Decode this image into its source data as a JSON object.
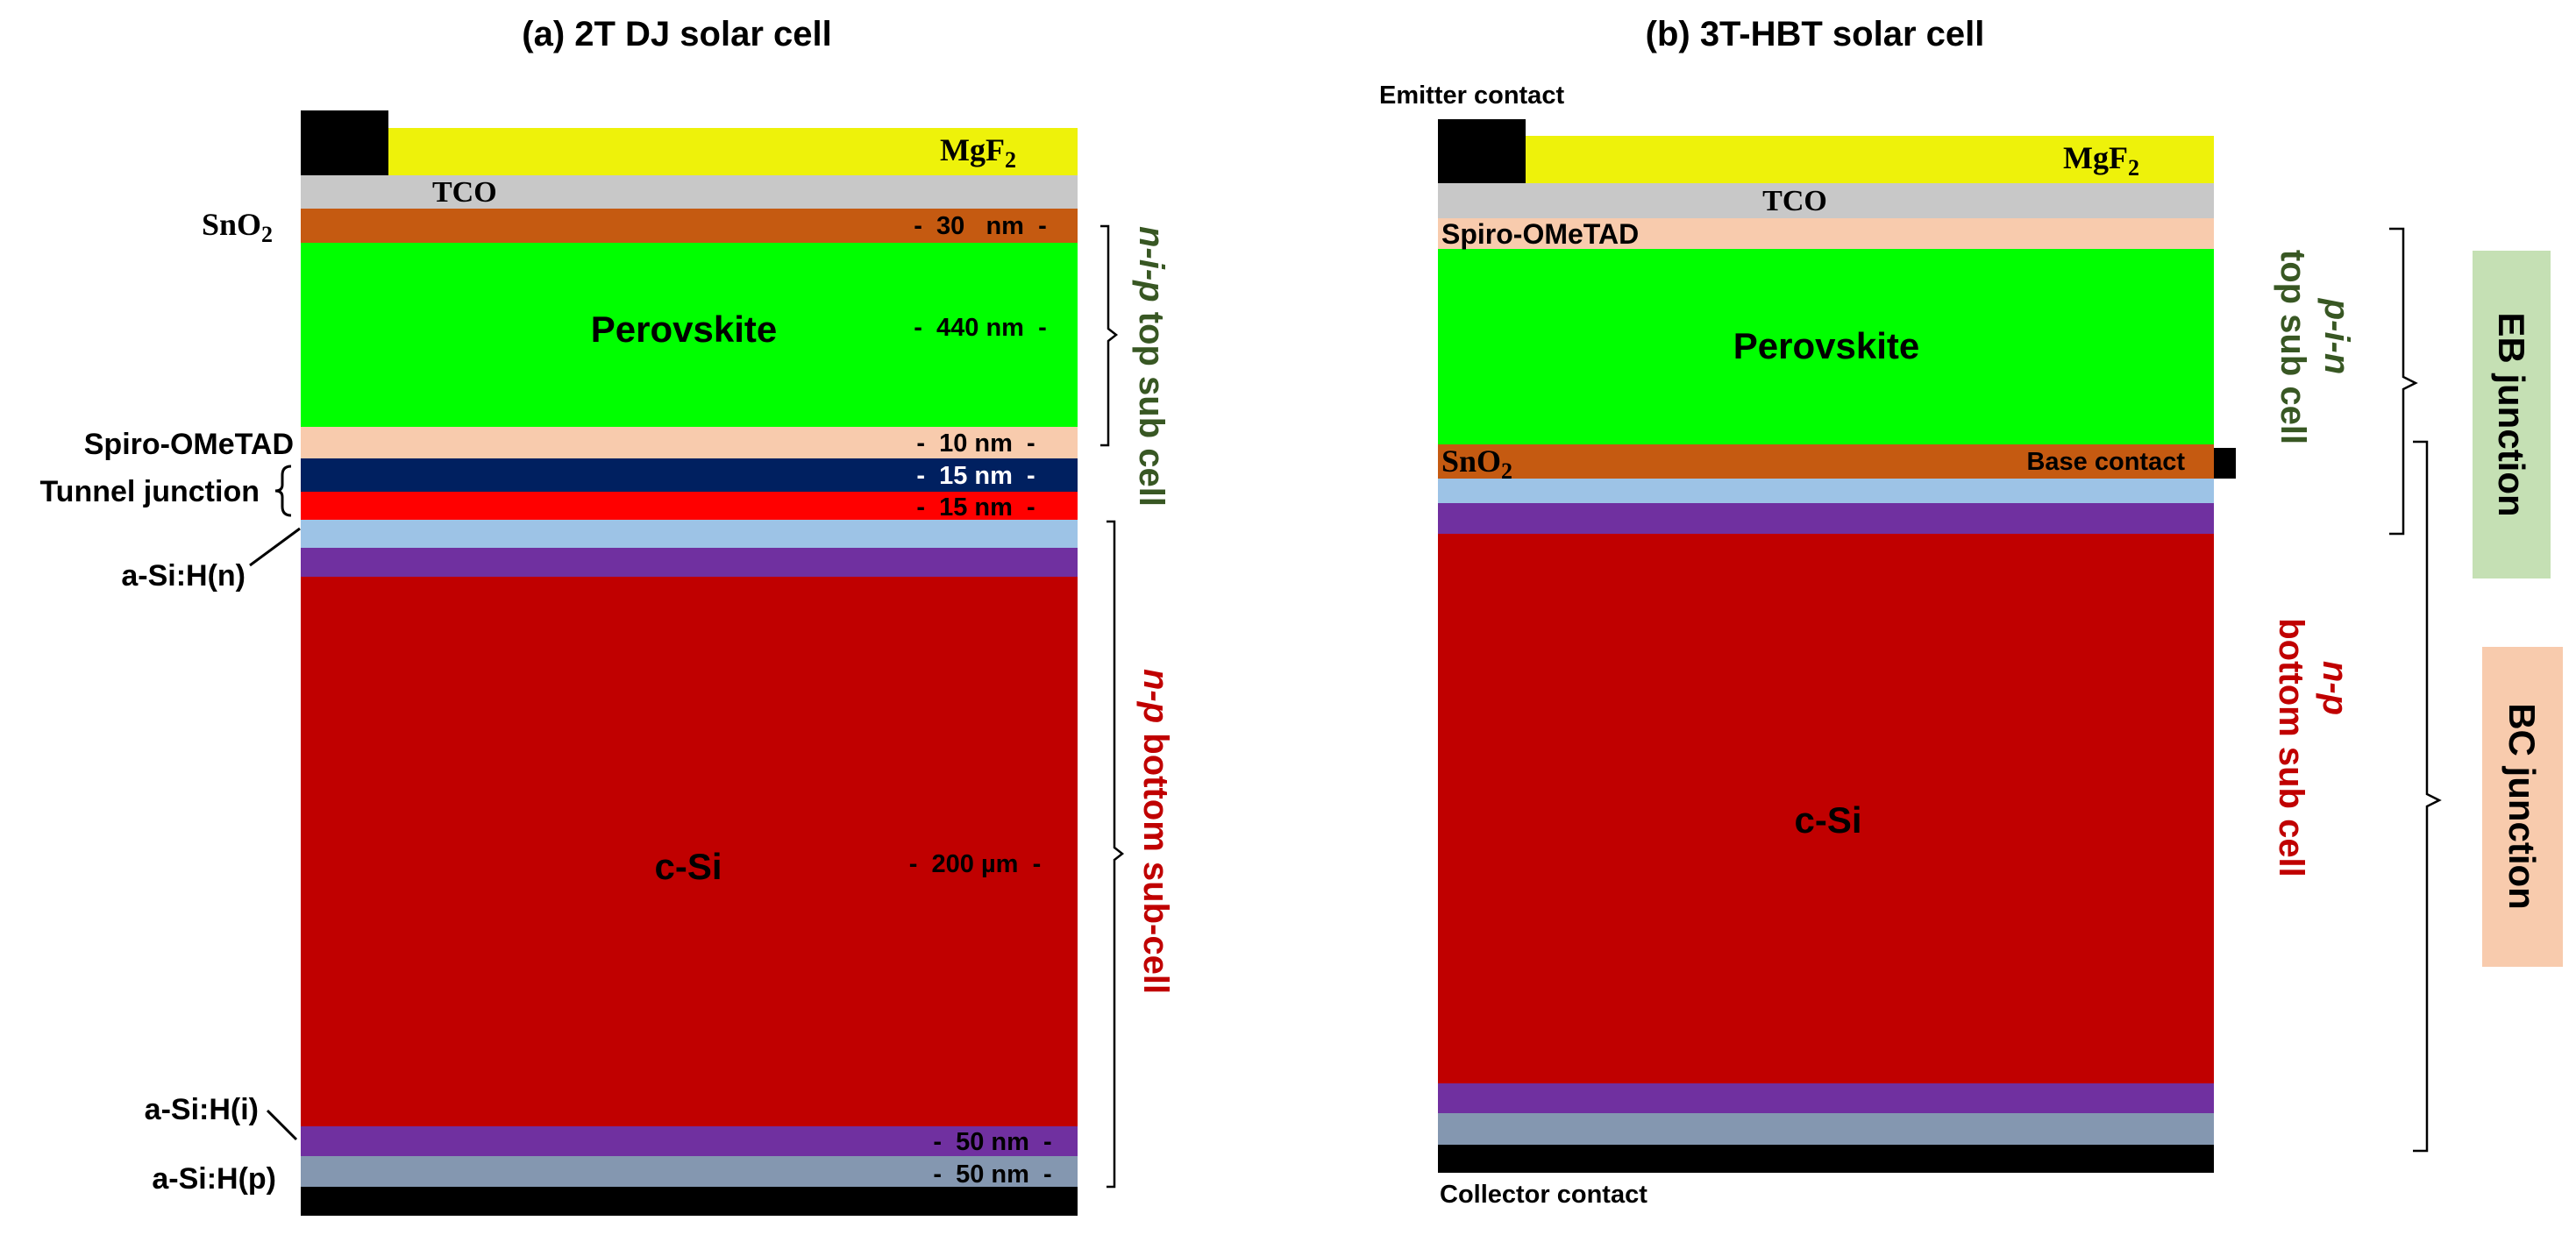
{
  "panel_a": {
    "title": "(a)  2T DJ solar cell",
    "layers": {
      "mgf2": "MgF",
      "mgf2_sub": "2",
      "tco": "TCO",
      "sno2": "SnO",
      "sno2_sub": "2",
      "perovskite": "Perovskite",
      "spiro": "Spiro-OMeTAD",
      "tunnel_junction": "Tunnel junction",
      "a_si_n": "a-Si:H(n)",
      "c_si": "c-Si",
      "a_si_i": "a-Si:H(i)",
      "a_si_p": "a-Si:H(p)"
    },
    "thicknesses": {
      "sno2": "-  30   nm  -",
      "perovskite": "-  440 nm  -",
      "spiro": "-  10 nm  -",
      "tunnel_top": "-  15 nm  -",
      "tunnel_bottom": "-  15 nm  -",
      "c_si": "-  200 µm  -",
      "a_si_i": "-  50 nm  -",
      "a_si_p": "-  50 nm  -"
    },
    "top_subcell": {
      "italic": "n-i-p",
      "rest": " top sub cell"
    },
    "bottom_subcell": {
      "italic": "n-p",
      "rest": " bottom sub-cell"
    }
  },
  "panel_b": {
    "title": "(b)  3T-HBT solar cell",
    "layers": {
      "emitter_contact": "Emitter contact",
      "mgf2": "MgF",
      "mgf2_sub": "2",
      "tco": "TCO",
      "spiro": "Spiro-OMeTAD",
      "perovskite": "Perovskite",
      "sno2": "SnO",
      "sno2_sub": "2",
      "base_contact": "Base contact",
      "c_si": "c-Si",
      "collector_contact": "Collector contact"
    },
    "top_subcell": {
      "italic": "p-i-n",
      "rest": "top sub cell"
    },
    "bottom_subcell": {
      "italic": "n-p",
      "rest": "bottom sub cell"
    },
    "eb_junction": "EB junction",
    "bc_junction": "BC junction"
  },
  "colors": {
    "mgf2": "#EEF20A",
    "tco": "#C8C8C8",
    "sno2": "#C55A11",
    "perovskite": "#00FF00",
    "spiro": "#F8CBAD",
    "tunnel_navy": "#002060",
    "tunnel_red": "#FF0000",
    "a_si_n": "#9DC3E6",
    "purple": "#7030A0",
    "c_si": "#C00000",
    "a_si_p": "#8497B0",
    "contact": "#000000",
    "green_label": "#385723",
    "red_label": "#C00000",
    "eb_box": "#C5E0B4",
    "bc_box": "#F8CBAD"
  }
}
